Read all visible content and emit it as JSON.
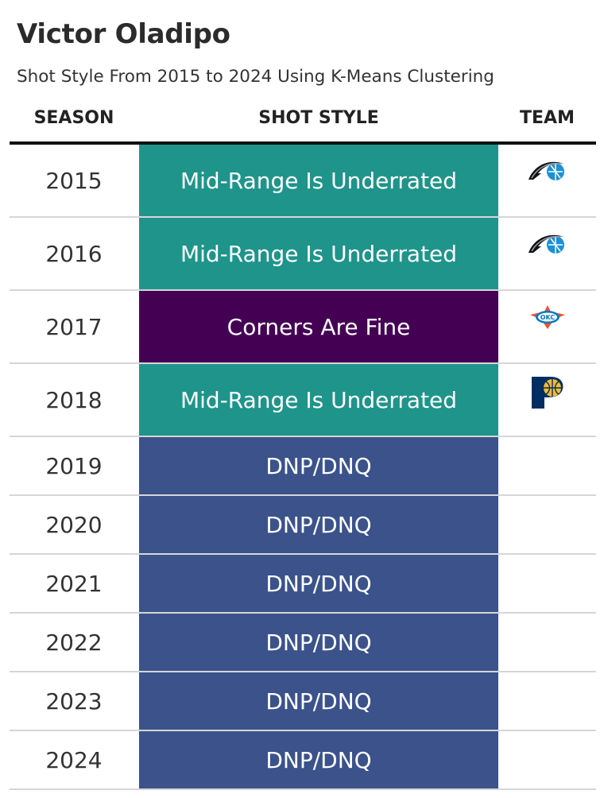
{
  "title": "Victor Oladipo",
  "subtitle": "Shot Style From 2015 to 2024 Using K-Means Clustering",
  "columns": {
    "season": "SEASON",
    "shot_style": "SHOT STYLE",
    "team": "TEAM"
  },
  "colors": {
    "mid_range": "#1f948b",
    "corners": "#440154",
    "dnp": "#3b528b"
  },
  "rows": [
    {
      "season": "2015",
      "shot_style": "Mid-Range Is Underrated",
      "style_key": "mid_range",
      "team_logo": "orlando-magic-logo"
    },
    {
      "season": "2016",
      "shot_style": "Mid-Range Is Underrated",
      "style_key": "mid_range",
      "team_logo": "orlando-magic-logo"
    },
    {
      "season": "2017",
      "shot_style": "Corners Are Fine",
      "style_key": "corners",
      "team_logo": "okc-thunder-logo"
    },
    {
      "season": "2018",
      "shot_style": "Mid-Range Is Underrated",
      "style_key": "mid_range",
      "team_logo": "indiana-pacers-logo"
    },
    {
      "season": "2019",
      "shot_style": "DNP/DNQ",
      "style_key": "dnp",
      "team_logo": ""
    },
    {
      "season": "2020",
      "shot_style": "DNP/DNQ",
      "style_key": "dnp",
      "team_logo": ""
    },
    {
      "season": "2021",
      "shot_style": "DNP/DNQ",
      "style_key": "dnp",
      "team_logo": ""
    },
    {
      "season": "2022",
      "shot_style": "DNP/DNQ",
      "style_key": "dnp",
      "team_logo": ""
    },
    {
      "season": "2023",
      "shot_style": "DNP/DNQ",
      "style_key": "dnp",
      "team_logo": ""
    },
    {
      "season": "2024",
      "shot_style": "DNP/DNQ",
      "style_key": "dnp",
      "team_logo": ""
    }
  ]
}
